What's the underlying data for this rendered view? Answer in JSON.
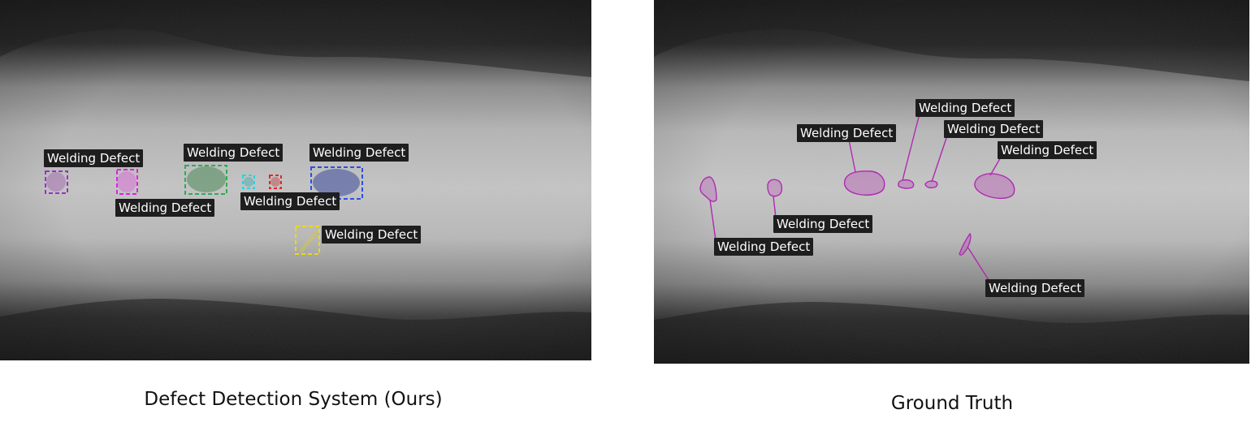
{
  "panels": {
    "left": {
      "caption": "Defect Detection System (Ours)",
      "detections": [
        {
          "label": "Welding Defect",
          "color": "#9b30c8"
        },
        {
          "label": "Welding Defect",
          "color": "#e020e0"
        },
        {
          "label": "Welding Defect",
          "color": "#28b050"
        },
        {
          "label": "Welding Defect",
          "color": "#20d8e0"
        },
        {
          "label": "Welding Defect",
          "color": "#e02828"
        },
        {
          "label": "Welding Defect",
          "color": "#2850e8"
        },
        {
          "label": "Welding Defect",
          "color": "#e8d820"
        }
      ]
    },
    "right": {
      "caption": "Ground Truth",
      "annotation_color": "#b02ab0",
      "annotations": [
        {
          "label": "Welding Defect"
        },
        {
          "label": "Welding Defect"
        },
        {
          "label": "Welding Defect"
        },
        {
          "label": "Welding Defect"
        },
        {
          "label": "Welding Defect"
        },
        {
          "label": "Welding Defect"
        },
        {
          "label": "Welding Defect"
        }
      ]
    }
  }
}
